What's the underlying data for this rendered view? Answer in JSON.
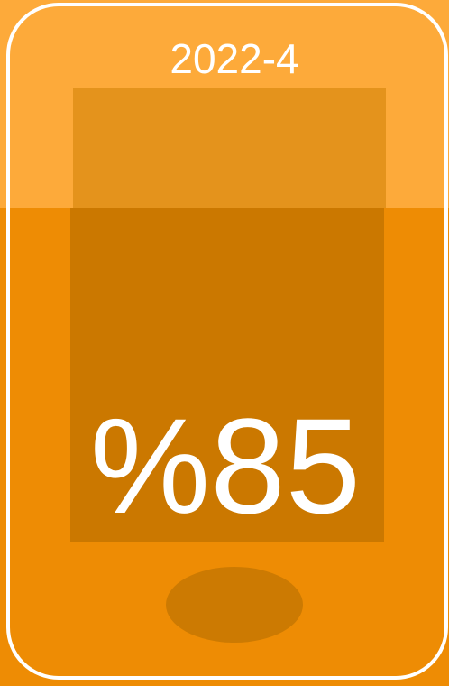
{
  "header": {
    "title": "2022-4"
  },
  "display": {
    "text": "%85"
  }
}
